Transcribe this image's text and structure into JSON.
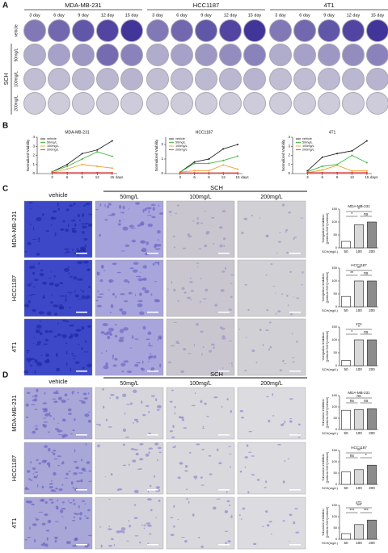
{
  "figure": {
    "panel_a": {
      "label": "A",
      "cell_lines": [
        "MDA-MB-231",
        "HCC1187",
        "4T1"
      ],
      "days": [
        "3 day",
        "6 day",
        "9 day",
        "12 day",
        "15 day"
      ],
      "treatment_group": "SCH",
      "treatments": [
        "vehicle",
        "50mg/L",
        "100mg/L",
        "200mg/L"
      ]
    },
    "panel_b": {
      "label": "B"
    },
    "panel_c": {
      "label": "C",
      "group": "SCH",
      "columns": [
        "vehicle",
        "50mg/L",
        "100mg/L",
        "200mg/L"
      ],
      "rows": [
        "MDA-MB-231",
        "HCC1187",
        "4T1"
      ]
    },
    "panel_d": {
      "label": "D",
      "group": "SCH",
      "columns": [
        "vehicle",
        "50mg/L",
        "100mg/L",
        "200mg/L"
      ],
      "rows": [
        "MDA-MB-231",
        "HCC1187",
        "4T1"
      ]
    }
  },
  "chart_data": [
    {
      "type": "line",
      "title": "MDA-MB-231",
      "x": [
        3,
        6,
        9,
        12,
        15
      ],
      "xlim": [
        0,
        16
      ],
      "xticks": [
        3,
        6,
        9,
        12,
        15
      ],
      "xlabel": "days",
      "ylabel": "Normalized Viability",
      "ylim": [
        0,
        4
      ],
      "yticks": [
        0,
        1,
        2,
        3,
        4
      ],
      "series": [
        {
          "name": "vehicle",
          "color": "#222222",
          "values": [
            0.2,
            1.0,
            2.2,
            2.6,
            3.6
          ]
        },
        {
          "name": "50mg/L",
          "color": "#3cb83c",
          "values": [
            0.2,
            0.8,
            1.6,
            2.4,
            1.9
          ]
        },
        {
          "name": "100mg/L",
          "color": "#f0a030",
          "values": [
            0.1,
            0.5,
            1.0,
            0.8,
            0.6
          ]
        },
        {
          "name": "200mg/L",
          "color": "#e03030",
          "values": [
            0.1,
            0.1,
            0.1,
            0.1,
            0.1
          ]
        }
      ]
    },
    {
      "type": "line",
      "title": "HCC1187",
      "x": [
        3,
        6,
        9,
        12,
        15
      ],
      "xlim": [
        0,
        16
      ],
      "xticks": [
        3,
        6,
        9,
        12,
        15
      ],
      "xlabel": "days",
      "ylabel": "Normalized Viability",
      "ylim": [
        0,
        2.5
      ],
      "yticks": [
        0,
        1,
        2
      ],
      "series": [
        {
          "name": "vehicle",
          "color": "#222222",
          "values": [
            0.1,
            0.8,
            1.0,
            1.7,
            2.0
          ]
        },
        {
          "name": "50mg/L",
          "color": "#3cb83c",
          "values": [
            0.1,
            0.7,
            0.7,
            0.9,
            1.2
          ]
        },
        {
          "name": "100mg/L",
          "color": "#f0a030",
          "values": [
            0.1,
            0.2,
            0.2,
            0.6,
            0.3
          ]
        },
        {
          "name": "200mg/L",
          "color": "#e03030",
          "values": [
            0.05,
            0.05,
            0.05,
            0.05,
            0.05
          ]
        }
      ]
    },
    {
      "type": "line",
      "title": "4T1",
      "x": [
        3,
        6,
        9,
        12,
        15
      ],
      "xlim": [
        0,
        16
      ],
      "xticks": [
        3,
        6,
        9,
        12,
        15
      ],
      "xlabel": "days",
      "ylabel": "Normalized Viability",
      "ylim": [
        0,
        4
      ],
      "yticks": [
        0,
        1,
        2,
        3,
        4
      ],
      "series": [
        {
          "name": "vehicle",
          "color": "#222222",
          "values": [
            0.3,
            1.8,
            2.2,
            2.5,
            3.6
          ]
        },
        {
          "name": "50mg/L",
          "color": "#3cb83c",
          "values": [
            0.2,
            0.8,
            1.0,
            2.0,
            1.2
          ]
        },
        {
          "name": "100mg/L",
          "color": "#f0a030",
          "values": [
            0.1,
            0.4,
            0.9,
            0.3,
            0.3
          ]
        },
        {
          "name": "200mg/L",
          "color": "#e03030",
          "values": [
            0.1,
            0.1,
            0.1,
            0.1,
            0.1
          ]
        }
      ]
    },
    {
      "type": "bar",
      "title": "MDA-MB-231",
      "ylabel": [
        "%migration inhibition",
        "[(vehicle-SCH)/vehicle]"
      ],
      "xlabel": "SCH(mg/L)",
      "categories": [
        "50",
        "100",
        "200"
      ],
      "values": [
        25,
        90,
        100
      ],
      "colors": [
        "#ffffff",
        "#d9d9d9",
        "#8c8c8c"
      ],
      "ylim": [
        0,
        150
      ],
      "yticks": [
        0,
        50,
        100,
        150
      ],
      "annotations": [
        {
          "text": "*",
          "between": [
            "50",
            "200"
          ]
        },
        {
          "text": "*",
          "between": [
            "50",
            "100"
          ]
        },
        {
          "text": "ns",
          "between": [
            "100",
            "200"
          ]
        }
      ]
    },
    {
      "type": "bar",
      "title": "HCC1187",
      "ylabel": [
        "%migration inhibition",
        "[(vehicle-SCH)/vehicle]"
      ],
      "xlabel": "SCH(mg/L)",
      "categories": [
        "50",
        "100",
        "200"
      ],
      "values": [
        40,
        100,
        100
      ],
      "colors": [
        "#ffffff",
        "#d9d9d9",
        "#8c8c8c"
      ],
      "ylim": [
        0,
        150
      ],
      "yticks": [
        0,
        50,
        100,
        150
      ],
      "annotations": [
        {
          "text": "**",
          "between": [
            "50",
            "200"
          ]
        },
        {
          "text": "**",
          "between": [
            "50",
            "100"
          ]
        },
        {
          "text": "ns",
          "between": [
            "100",
            "200"
          ]
        }
      ]
    },
    {
      "type": "bar",
      "title": "4T1",
      "ylabel": [
        "%migration inhibition",
        "[(vehicle-SCH)/vehicle]"
      ],
      "xlabel": "SCH(mg/L)",
      "categories": [
        "50",
        "100",
        "200"
      ],
      "values": [
        20,
        100,
        100
      ],
      "colors": [
        "#ffffff",
        "#d9d9d9",
        "#8c8c8c"
      ],
      "ylim": [
        0,
        150
      ],
      "yticks": [
        0,
        50,
        100,
        150
      ],
      "annotations": [
        {
          "text": "*",
          "between": [
            "50",
            "200"
          ]
        },
        {
          "text": "*",
          "between": [
            "50",
            "100"
          ]
        },
        {
          "text": "ns",
          "between": [
            "100",
            "200"
          ]
        }
      ]
    },
    {
      "type": "bar",
      "title": "MDA-MB-231",
      "ylabel": [
        "%invasion inhibition",
        "[(vehicle-SCH)/vehicle]"
      ],
      "xlabel": "SCH(mg/L)",
      "categories": [
        "50",
        "100",
        "200"
      ],
      "values": [
        85,
        88,
        92
      ],
      "colors": [
        "#ffffff",
        "#d9d9d9",
        "#8c8c8c"
      ],
      "ylim": [
        0,
        150
      ],
      "yticks": [
        0,
        50,
        100,
        150
      ],
      "annotations": [
        {
          "text": "ns",
          "between": [
            "50",
            "200"
          ]
        },
        {
          "text": "ns",
          "between": [
            "50",
            "100"
          ]
        },
        {
          "text": "ns",
          "between": [
            "100",
            "200"
          ]
        }
      ]
    },
    {
      "type": "bar",
      "title": "HCC1187",
      "ylabel": [
        "%invasion inhibition",
        "[(vehicle-SCH)/vehicle]"
      ],
      "xlabel": "SCH(mg/L)",
      "categories": [
        "50",
        "100",
        "200"
      ],
      "values": [
        55,
        65,
        85
      ],
      "colors": [
        "#ffffff",
        "#d9d9d9",
        "#8c8c8c"
      ],
      "ylim": [
        0,
        150
      ],
      "yticks": [
        0,
        50,
        100,
        150
      ],
      "annotations": [
        {
          "text": "**",
          "between": [
            "50",
            "200"
          ]
        },
        {
          "text": "ns",
          "between": [
            "50",
            "100"
          ]
        },
        {
          "text": "*",
          "between": [
            "100",
            "200"
          ]
        }
      ]
    },
    {
      "type": "bar",
      "title": "4T1",
      "ylabel": [
        "%invasion inhibition",
        "[(vehicle-SCH)/vehicle]"
      ],
      "xlabel": "SCH(mg/L)",
      "categories": [
        "50",
        "100",
        "200"
      ],
      "values": [
        25,
        65,
        85
      ],
      "colors": [
        "#ffffff",
        "#d9d9d9",
        "#8c8c8c"
      ],
      "ylim": [
        0,
        150
      ],
      "yticks": [
        0,
        50,
        100,
        150
      ],
      "annotations": [
        {
          "text": "***",
          "between": [
            "50",
            "200"
          ]
        },
        {
          "text": "***",
          "between": [
            "50",
            "100"
          ]
        },
        {
          "text": "***",
          "between": [
            "100",
            "200"
          ]
        }
      ]
    }
  ]
}
